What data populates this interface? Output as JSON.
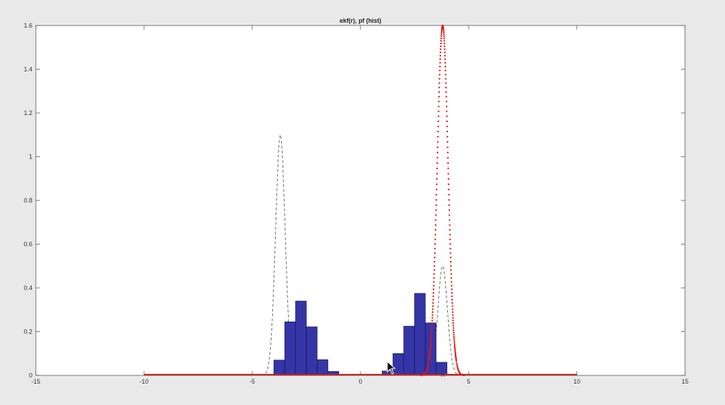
{
  "chart_data": {
    "type": "histogram+line",
    "title": "ekf(r), pf (hist)",
    "xlabel": "",
    "ylabel": "",
    "xlim": [
      -15,
      15
    ],
    "ylim": [
      0,
      1.6
    ],
    "xticks": [
      "-15",
      "-10",
      "-5",
      "0",
      "5",
      "10",
      "15"
    ],
    "yticks": [
      "0",
      "0.2",
      "0.4",
      "0.6",
      "0.8",
      "1",
      "1.2",
      "1.4",
      "1.6"
    ],
    "grid": false,
    "colors": {
      "bar_fill": "#3535a8",
      "bar_edge": "#0b0b3a",
      "ekf": "#e8120c",
      "dashed": "#555555"
    },
    "histogram": {
      "bin_width": 0.5,
      "bars": [
        {
          "x": -3.75,
          "y": 0.07
        },
        {
          "x": -3.25,
          "y": 0.245
        },
        {
          "x": -2.75,
          "y": 0.34
        },
        {
          "x": -2.25,
          "y": 0.222
        },
        {
          "x": -1.75,
          "y": 0.072
        },
        {
          "x": -1.25,
          "y": 0.018
        },
        {
          "x": -0.75,
          "y": 0.005
        },
        {
          "x": 1.25,
          "y": 0.02
        },
        {
          "x": 1.75,
          "y": 0.1
        },
        {
          "x": 2.25,
          "y": 0.225
        },
        {
          "x": 2.75,
          "y": 0.375
        },
        {
          "x": 3.25,
          "y": 0.24
        },
        {
          "x": 3.75,
          "y": 0.06
        },
        {
          "x": 4.25,
          "y": 0.003
        }
      ]
    },
    "ekf_curve": {
      "mean": 3.8,
      "peak": 1.6,
      "sigma": 0.25,
      "x_range": [
        -10,
        10
      ]
    },
    "dashed_curves": [
      {
        "mean": -3.7,
        "peak": 1.1,
        "sigma": 0.22
      },
      {
        "mean": 3.8,
        "peak": 0.5,
        "sigma": 0.22
      }
    ],
    "markers": [
      {
        "x": 3.8,
        "y": 0,
        "symbol": "x"
      }
    ]
  }
}
